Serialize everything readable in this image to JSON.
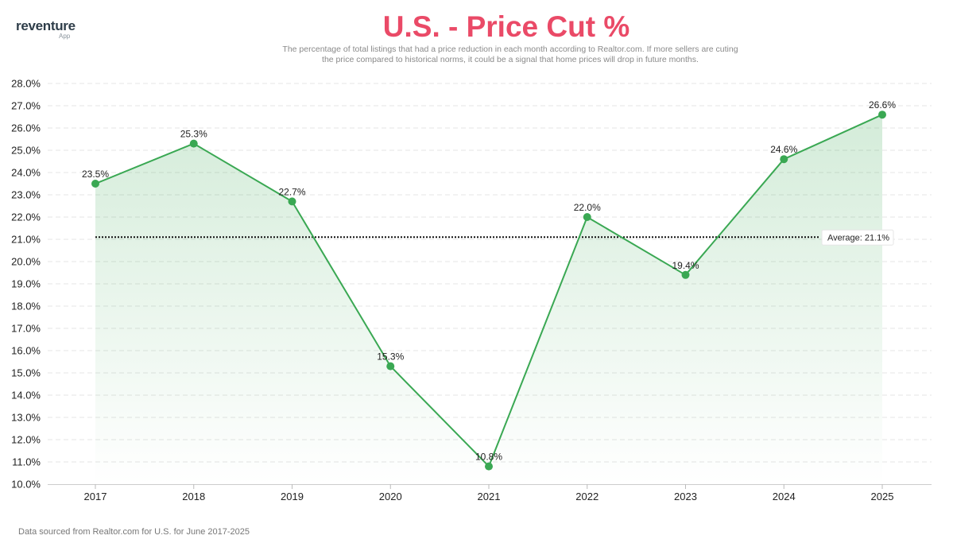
{
  "brand": {
    "name": "reventure",
    "sub": "App"
  },
  "header": {
    "title": "U.S. - Price Cut %",
    "subtitle_line1": "The percentage of total listings that had a price reduction in each month according to Realtor.com. If more sellers are cuting",
    "subtitle_line2": "the price compared to historical norms, it could be a signal that home prices will drop in future months."
  },
  "footer": {
    "source": "Data sourced from Realtor.com for U.S. for June 2017-2025"
  },
  "chart_data": {
    "type": "line",
    "title": "U.S. - Price Cut %",
    "xlabel": "",
    "ylabel": "",
    "categories": [
      "2017",
      "2018",
      "2019",
      "2020",
      "2021",
      "2022",
      "2023",
      "2024",
      "2025"
    ],
    "series": [
      {
        "name": "Price Cut %",
        "values": [
          23.5,
          25.3,
          22.7,
          15.3,
          10.8,
          22.0,
          19.4,
          24.6,
          26.6
        ],
        "labels": [
          "23.5%",
          "25.3%",
          "22.7%",
          "15.3%",
          "10.8%",
          "22.0%",
          "19.4%",
          "24.6%",
          "26.6%"
        ]
      }
    ],
    "ylim": [
      10,
      28
    ],
    "ytick_step": 1,
    "ytick_labels": [
      "10.0%",
      "11.0%",
      "12.0%",
      "13.0%",
      "14.0%",
      "15.0%",
      "16.0%",
      "17.0%",
      "18.0%",
      "19.0%",
      "20.0%",
      "21.0%",
      "22.0%",
      "23.0%",
      "24.0%",
      "25.0%",
      "26.0%",
      "27.0%",
      "28.0%"
    ],
    "average": 21.1,
    "average_label": "Average: 21.1%",
    "grid": true,
    "colors": {
      "line": "#3aa853",
      "marker": "#3aa853",
      "fill": "#3aa853",
      "average_line": "#111111",
      "grid": "#e4e4e4"
    }
  }
}
